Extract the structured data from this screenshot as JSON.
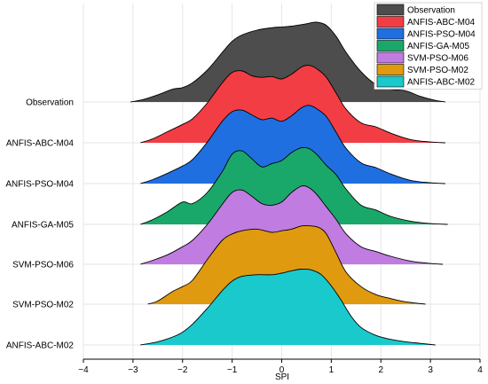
{
  "chart_data": {
    "type": "area",
    "subtype": "ridgeline-density",
    "title": "",
    "xlabel": "SPI",
    "ylabel": "",
    "xlim": [
      -4,
      4
    ],
    "xticks": [
      -4,
      -3,
      -2,
      -1,
      0,
      1,
      2,
      3,
      4
    ],
    "grid": true,
    "legend_position": "top-right",
    "series": [
      {
        "name": "Observation",
        "color": "#4d4d4d",
        "x_range": [
          -3.05,
          3.3
        ],
        "x": [
          -3.05,
          -2.8,
          -2.5,
          -2.2,
          -2.0,
          -1.8,
          -1.5,
          -1.2,
          -1.0,
          -0.8,
          -0.5,
          -0.2,
          0.0,
          0.2,
          0.5,
          0.7,
          0.9,
          1.1,
          1.3,
          1.6,
          1.9,
          2.2,
          2.5,
          2.8,
          3.1,
          3.3
        ],
        "y": [
          0.0,
          0.03,
          0.09,
          0.16,
          0.18,
          0.24,
          0.4,
          0.62,
          0.76,
          0.84,
          0.9,
          0.93,
          0.94,
          0.95,
          0.98,
          1.0,
          0.96,
          0.82,
          0.62,
          0.38,
          0.22,
          0.16,
          0.14,
          0.07,
          0.02,
          0.0
        ]
      },
      {
        "name": "ANFIS-ABC-M04",
        "color": "#f23d44",
        "x_range": [
          -2.85,
          3.3
        ],
        "x": [
          -2.85,
          -2.6,
          -2.3,
          -2.0,
          -1.8,
          -1.5,
          -1.2,
          -1.0,
          -0.8,
          -0.6,
          -0.4,
          -0.2,
          0.0,
          0.2,
          0.4,
          0.55,
          0.7,
          0.9,
          1.1,
          1.3,
          1.6,
          1.9,
          2.2,
          2.6,
          3.0,
          3.3
        ],
        "y": [
          0.0,
          0.05,
          0.14,
          0.23,
          0.3,
          0.5,
          0.75,
          0.88,
          0.9,
          0.84,
          0.82,
          0.83,
          0.8,
          0.86,
          0.95,
          0.97,
          0.93,
          0.82,
          0.62,
          0.42,
          0.25,
          0.2,
          0.12,
          0.04,
          0.01,
          0.0
        ]
      },
      {
        "name": "ANFIS-PSO-M04",
        "color": "#1f6fe0",
        "x_range": [
          -2.85,
          3.3
        ],
        "x": [
          -2.85,
          -2.6,
          -2.3,
          -2.0,
          -1.8,
          -1.5,
          -1.2,
          -1.0,
          -0.8,
          -0.6,
          -0.4,
          -0.2,
          0.0,
          0.2,
          0.4,
          0.55,
          0.7,
          0.9,
          1.1,
          1.3,
          1.6,
          1.9,
          2.2,
          2.6,
          3.0,
          3.3
        ],
        "y": [
          0.0,
          0.05,
          0.13,
          0.22,
          0.3,
          0.52,
          0.78,
          0.9,
          0.92,
          0.86,
          0.8,
          0.82,
          0.78,
          0.85,
          0.95,
          0.98,
          0.94,
          0.84,
          0.64,
          0.44,
          0.26,
          0.2,
          0.12,
          0.04,
          0.01,
          0.0
        ]
      },
      {
        "name": "ANFIS-GA-M05",
        "color": "#1aa86a",
        "x_range": [
          -2.85,
          3.35
        ],
        "x": [
          -2.85,
          -2.6,
          -2.3,
          -2.0,
          -1.8,
          -1.5,
          -1.2,
          -1.0,
          -0.8,
          -0.6,
          -0.4,
          -0.2,
          0.0,
          0.2,
          0.4,
          0.55,
          0.7,
          0.9,
          1.1,
          1.3,
          1.6,
          1.9,
          2.2,
          2.6,
          3.0,
          3.35
        ],
        "y": [
          0.0,
          0.06,
          0.16,
          0.28,
          0.26,
          0.4,
          0.66,
          0.88,
          0.92,
          0.82,
          0.72,
          0.76,
          0.8,
          0.9,
          0.96,
          0.95,
          0.88,
          0.74,
          0.62,
          0.44,
          0.24,
          0.18,
          0.1,
          0.04,
          0.01,
          0.0
        ]
      },
      {
        "name": "SVM-PSO-M06",
        "color": "#c07ce0",
        "x_range": [
          -2.85,
          3.25
        ],
        "x": [
          -2.85,
          -2.6,
          -2.3,
          -2.0,
          -1.8,
          -1.5,
          -1.2,
          -1.0,
          -0.8,
          -0.6,
          -0.4,
          -0.2,
          0.0,
          0.2,
          0.4,
          0.55,
          0.7,
          0.9,
          1.1,
          1.3,
          1.6,
          1.9,
          2.2,
          2.6,
          3.0,
          3.25
        ],
        "y": [
          0.0,
          0.05,
          0.12,
          0.22,
          0.3,
          0.5,
          0.75,
          0.9,
          0.93,
          0.85,
          0.76,
          0.74,
          0.78,
          0.9,
          0.98,
          0.96,
          0.88,
          0.72,
          0.56,
          0.38,
          0.22,
          0.16,
          0.1,
          0.04,
          0.01,
          0.0
        ]
      },
      {
        "name": "SVM-PSO-M02",
        "color": "#e09a10",
        "x_range": [
          -2.7,
          2.9
        ],
        "x": [
          -2.7,
          -2.5,
          -2.2,
          -2.0,
          -1.8,
          -1.5,
          -1.2,
          -1.0,
          -0.8,
          -0.5,
          -0.2,
          0.0,
          0.2,
          0.4,
          0.6,
          0.75,
          0.9,
          1.1,
          1.3,
          1.6,
          1.9,
          2.2,
          2.5,
          2.9
        ],
        "y": [
          0.0,
          0.04,
          0.16,
          0.22,
          0.3,
          0.56,
          0.8,
          0.88,
          0.92,
          0.94,
          0.9,
          0.92,
          0.94,
          0.98,
          0.98,
          0.96,
          0.88,
          0.64,
          0.4,
          0.22,
          0.12,
          0.07,
          0.03,
          0.0
        ]
      },
      {
        "name": "ANFIS-ABC-M02",
        "color": "#1ac9cc",
        "x_range": [
          -2.85,
          3.1
        ],
        "x": [
          -2.85,
          -2.5,
          -2.2,
          -2.0,
          -1.8,
          -1.5,
          -1.2,
          -1.0,
          -0.8,
          -0.5,
          -0.2,
          0.0,
          0.2,
          0.4,
          0.6,
          0.8,
          1.0,
          1.2,
          1.4,
          1.6,
          1.9,
          2.2,
          2.5,
          2.8,
          3.1
        ],
        "y": [
          0.0,
          0.04,
          0.1,
          0.16,
          0.26,
          0.46,
          0.68,
          0.8,
          0.86,
          0.88,
          0.88,
          0.9,
          0.93,
          0.95,
          0.94,
          0.88,
          0.74,
          0.56,
          0.36,
          0.22,
          0.12,
          0.07,
          0.04,
          0.02,
          0.0
        ]
      }
    ]
  }
}
